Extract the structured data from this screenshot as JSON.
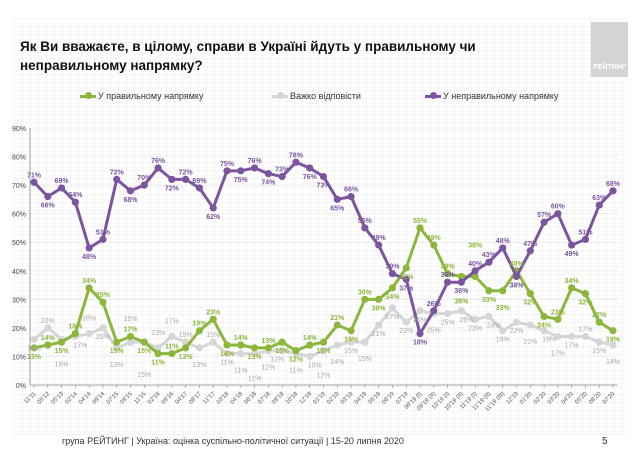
{
  "title": "Як Ви вважаєте, в цілому, справи в Україні йдуть у правильному чи неправильному напрямку?",
  "logo_text": "РЕЙТИНГ",
  "footer": "група РЕЙТИНГ | Україна: оцінка суспільно-політичної ситуації | 15-20 липня 2020",
  "page_number": "5",
  "chart_data": {
    "type": "line",
    "title": "",
    "xlabel": "",
    "ylabel": "",
    "ylim": [
      0,
      90
    ],
    "yticks": [
      "0%",
      "10%",
      "20%",
      "30%",
      "40%",
      "50%",
      "60%",
      "70%",
      "80%",
      "90%"
    ],
    "grid": true,
    "legend_position": "top",
    "categories": [
      "11'11",
      "05'12",
      "05'13",
      "02'14",
      "04'14",
      "09'14",
      "07'15",
      "09'15",
      "11'15",
      "02'16",
      "09'16",
      "04'17",
      "08'17",
      "11'17",
      "03'18",
      "04'18",
      "06'18",
      "07'18",
      "09'18",
      "10'18",
      "12'18",
      "01'19",
      "02'19",
      "03'19",
      "04'19",
      "05'19",
      "06'19",
      "07'19",
      "09'19 (I)",
      "09'19 (II)",
      "10'19 (I)",
      "10'19 (II)",
      "11'19 (I)",
      "11'19 (II)",
      "11'19 (III)",
      "12'19",
      "01'20",
      "02'20",
      "03'20",
      "04'20",
      "05'20",
      "06'20",
      "07'20"
    ],
    "series": [
      {
        "name": "У правильному напрямку",
        "color": "#8db63c",
        "values": [
          13,
          14,
          15,
          18,
          34,
          29,
          15,
          17,
          15,
          11,
          11,
          13,
          19,
          23,
          14,
          14,
          13,
          13,
          15,
          12,
          14,
          15,
          21,
          19,
          30,
          30,
          34,
          41,
          55,
          49,
          39,
          38,
          38,
          33,
          33,
          40,
          32,
          24,
          23,
          34,
          32,
          22,
          19
        ]
      },
      {
        "name": "Важко відповісти",
        "color": "#d6d6d6",
        "label_color": "#a8a8a8",
        "values": [
          16,
          20,
          16,
          17,
          18,
          20,
          13,
          15,
          15,
          13,
          17,
          15,
          13,
          15,
          11,
          11,
          11,
          12,
          12,
          11,
          10,
          12,
          14,
          15,
          15,
          21,
          27,
          22,
          26,
          25,
          25,
          26,
          23,
          24,
          19,
          22,
          21,
          19,
          17,
          17,
          17,
          15,
          14
        ]
      },
      {
        "name": "У неправильному напрямку",
        "color": "#7b559f",
        "values": [
          71,
          66,
          69,
          64,
          48,
          51,
          72,
          68,
          70,
          76,
          72,
          72,
          69,
          62,
          75,
          75,
          76,
          74,
          73,
          78,
          76,
          73,
          65,
          66,
          55,
          49,
          39,
          37,
          18,
          26,
          36,
          36,
          40,
          43,
          48,
          38,
          47,
          57,
          60,
          49,
          51,
          63,
          68
        ]
      }
    ]
  }
}
